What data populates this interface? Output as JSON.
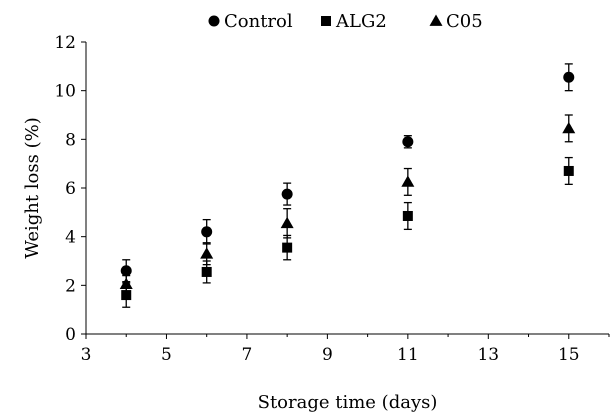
{
  "chart_data": {
    "type": "scatter",
    "title": "",
    "xlabel": "Storage time (days)",
    "ylabel": "Weight loss (%)",
    "xlim": [
      3,
      16
    ],
    "ylim": [
      0,
      12
    ],
    "xticks": [
      3,
      5,
      7,
      9,
      11,
      13,
      15
    ],
    "yticks": [
      0,
      2,
      4,
      6,
      8,
      10,
      12
    ],
    "grid": false,
    "legend_position": "top-center",
    "series": [
      {
        "name": "Control",
        "marker": "circle",
        "color": "#000000",
        "points": [
          {
            "x": 4,
            "y": 2.6,
            "err": 0.45
          },
          {
            "x": 6,
            "y": 4.2,
            "err": 0.5
          },
          {
            "x": 8,
            "y": 5.75,
            "err": 0.45
          },
          {
            "x": 11,
            "y": 7.9,
            "err": 0.25
          },
          {
            "x": 15,
            "y": 10.55,
            "err": 0.55
          }
        ]
      },
      {
        "name": "ALG2",
        "marker": "square",
        "color": "#000000",
        "points": [
          {
            "x": 4,
            "y": 1.6,
            "err": 0.5
          },
          {
            "x": 6,
            "y": 2.55,
            "err": 0.45
          },
          {
            "x": 8,
            "y": 3.55,
            "err": 0.5
          },
          {
            "x": 11,
            "y": 4.85,
            "err": 0.55
          },
          {
            "x": 15,
            "y": 6.7,
            "err": 0.55
          }
        ]
      },
      {
        "name": "C05",
        "marker": "triangle",
        "color": "#000000",
        "points": [
          {
            "x": 4,
            "y": 2.05,
            "err": 0.35
          },
          {
            "x": 6,
            "y": 3.3,
            "err": 0.45
          },
          {
            "x": 8,
            "y": 4.55,
            "err": 0.6
          },
          {
            "x": 11,
            "y": 6.25,
            "err": 0.55
          },
          {
            "x": 15,
            "y": 8.45,
            "err": 0.55
          }
        ]
      }
    ]
  }
}
